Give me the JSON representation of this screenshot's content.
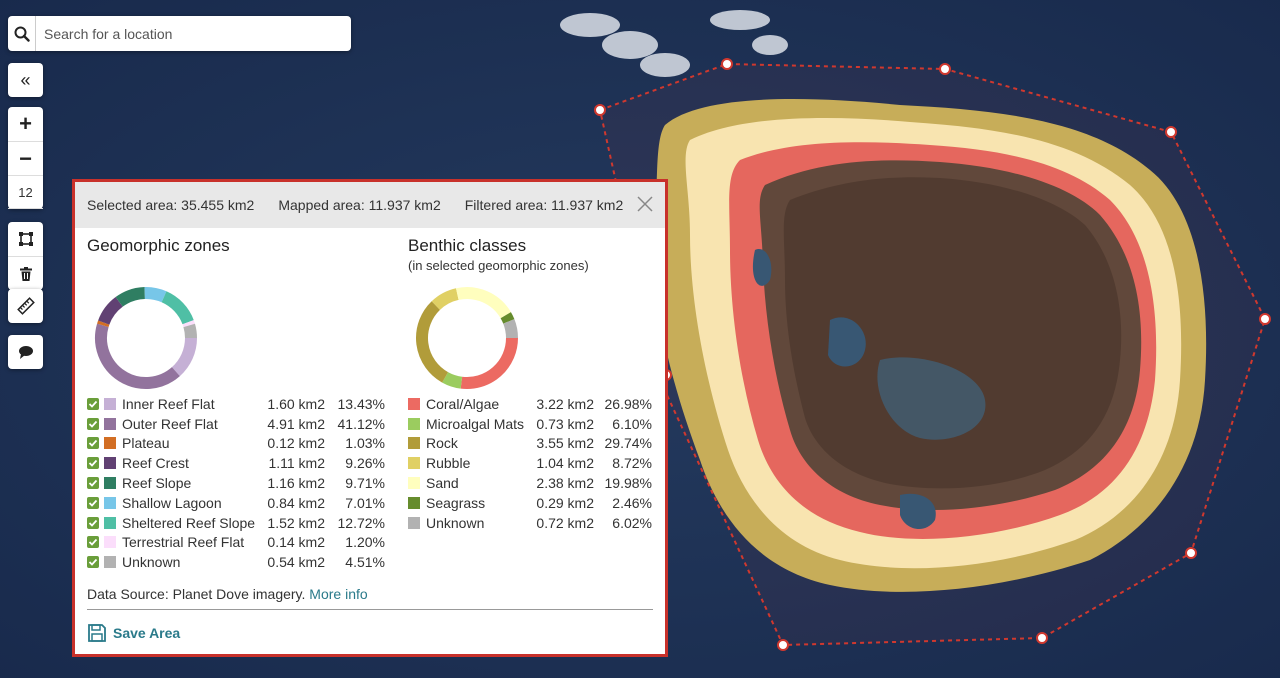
{
  "search": {
    "placeholder": "Search for a location"
  },
  "controls": {
    "collapse_label": "«",
    "zoom_in_label": "+",
    "zoom_out_label": "−",
    "zoom_level": "12"
  },
  "panel": {
    "selected_area": "Selected area: 35.455 km2",
    "mapped_area": "Mapped area: 11.937 km2",
    "filtered_area": "Filtered area: 11.937 km2",
    "geomorphic_title": "Geomorphic zones",
    "benthic_title": "Benthic classes",
    "benthic_subtitle": "(in selected geomorphic zones)",
    "geomorphic": [
      {
        "name": "Inner Reef Flat",
        "area": "1.60 km2",
        "pct": "13.43%",
        "value": 13.43,
        "color": "#c5b0d5"
      },
      {
        "name": "Outer Reef Flat",
        "area": "4.91 km2",
        "pct": "41.12%",
        "value": 41.12,
        "color": "#92739d"
      },
      {
        "name": "Plateau",
        "area": "0.12 km2",
        "pct": "1.03%",
        "value": 1.03,
        "color": "#d26e24"
      },
      {
        "name": "Reef Crest",
        "area": "1.11 km2",
        "pct": "9.26%",
        "value": 9.26,
        "color": "#614173"
      },
      {
        "name": "Reef Slope",
        "area": "1.16 km2",
        "pct": "9.71%",
        "value": 9.71,
        "color": "#2f7e62"
      },
      {
        "name": "Shallow Lagoon",
        "area": "0.84 km2",
        "pct": "7.01%",
        "value": 7.01,
        "color": "#77c6e8"
      },
      {
        "name": "Sheltered Reef Slope",
        "area": "1.52 km2",
        "pct": "12.72%",
        "value": 12.72,
        "color": "#4fbfa5"
      },
      {
        "name": "Terrestrial Reef Flat",
        "area": "0.14 km2",
        "pct": "1.20%",
        "value": 1.2,
        "color": "#fbdefb"
      },
      {
        "name": "Unknown",
        "area": "0.54 km2",
        "pct": "4.51%",
        "value": 4.51,
        "color": "#b2b2b2"
      }
    ],
    "benthic": [
      {
        "name": "Coral/Algae",
        "area": "3.22 km2",
        "pct": "26.98%",
        "value": 26.98,
        "color": "#ec6a62"
      },
      {
        "name": "Microalgal Mats",
        "area": "0.73 km2",
        "pct": "6.10%",
        "value": 6.1,
        "color": "#9bcc5f"
      },
      {
        "name": "Rock",
        "area": "3.55 km2",
        "pct": "29.74%",
        "value": 29.74,
        "color": "#b19c3a"
      },
      {
        "name": "Rubble",
        "area": "1.04 km2",
        "pct": "8.72%",
        "value": 8.72,
        "color": "#e0d064"
      },
      {
        "name": "Sand",
        "area": "2.38 km2",
        "pct": "19.98%",
        "value": 19.98,
        "color": "#fffebe"
      },
      {
        "name": "Seagrass",
        "area": "0.29 km2",
        "pct": "2.46%",
        "value": 2.46,
        "color": "#668c2d"
      },
      {
        "name": "Unknown",
        "area": "0.72 km2",
        "pct": "6.02%",
        "value": 6.02,
        "color": "#b2b2b2"
      }
    ],
    "source_text": "Data Source: Planet Dove imagery.",
    "more_info": "More info",
    "save_label": "Save Area"
  },
  "colors": {
    "accent": "#2a7a8a",
    "selection_border": "#c8312b",
    "checkbox": "#6a9e3a"
  }
}
